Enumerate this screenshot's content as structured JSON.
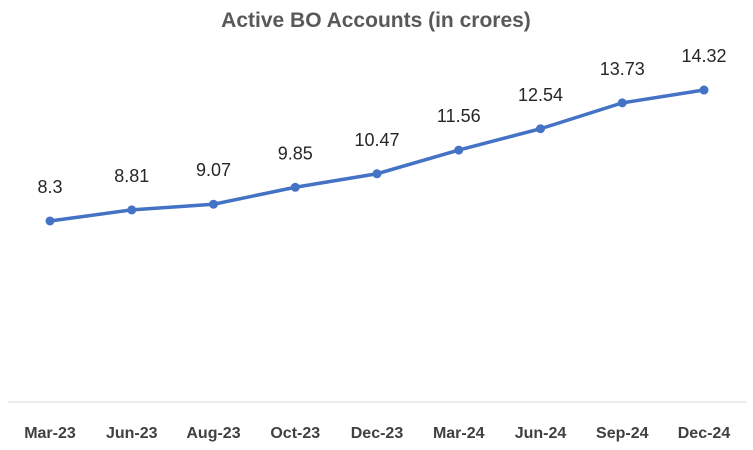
{
  "chart_data": {
    "type": "line",
    "title": "Active BO Accounts (in crores)",
    "categories": [
      "Mar-23",
      "Jun-23",
      "Aug-23",
      "Oct-23",
      "Dec-23",
      "Mar-24",
      "Jun-24",
      "Sep-24",
      "Dec-24"
    ],
    "series": [
      {
        "values": [
          8.3,
          8.81,
          9.07,
          9.85,
          10.47,
          11.56,
          12.54,
          13.73,
          14.32
        ]
      }
    ],
    "data_labels": [
      "8.3",
      "8.81",
      "9.07",
      "9.85",
      "10.47",
      "11.56",
      "12.54",
      "13.73",
      "14.32"
    ],
    "ylim": [
      0,
      16
    ],
    "grid": false,
    "legend": "none",
    "colors": {
      "line": "#4472C4",
      "axis": "#D9D9D9"
    }
  }
}
